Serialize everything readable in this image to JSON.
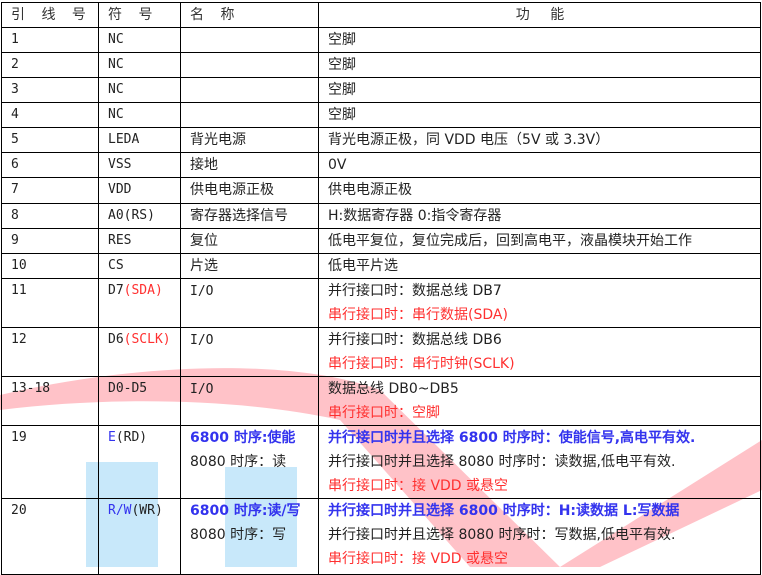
{
  "table": {
    "headers": [
      "引 线 号",
      "符 号",
      "名 称",
      "功 能"
    ],
    "rows": [
      {
        "pin": "1",
        "symbol": "NC",
        "name": "",
        "function": [
          "空脚"
        ]
      },
      {
        "pin": "2",
        "symbol": "NC",
        "name": "",
        "function": [
          "空脚"
        ]
      },
      {
        "pin": "3",
        "symbol": "NC",
        "name": "",
        "function": [
          "空脚"
        ]
      },
      {
        "pin": "4",
        "symbol": "NC",
        "name": "",
        "function": [
          "空脚"
        ]
      },
      {
        "pin": "5",
        "symbol": "LEDA",
        "name": "背光电源",
        "function": [
          "背光电源正极，同 VDD 电压（5V 或 3.3V）"
        ]
      },
      {
        "pin": "6",
        "symbol": "VSS",
        "name": "接地",
        "function": [
          "0V"
        ]
      },
      {
        "pin": "7",
        "symbol": "VDD",
        "name": "供电电源正极",
        "function": [
          "供电电源正极"
        ]
      },
      {
        "pin": "8",
        "symbol": "A0(RS)",
        "name": "寄存器选择信号",
        "function": [
          "H:数据寄存器 0:指令寄存器"
        ]
      },
      {
        "pin": "9",
        "symbol": "RES",
        "name": "复位",
        "function": [
          "低电平复位，复位完成后，回到高电平，液晶模块开始工作"
        ]
      },
      {
        "pin": "10",
        "symbol": "CS",
        "name": "片选",
        "function": [
          "低电平片选"
        ]
      },
      {
        "pin": "11",
        "symbol": "D7",
        "symbol_serial": "(SDA)",
        "name": "I/O",
        "function": [
          "并行接口时：数据总线 DB7",
          "串行接口时：串行数据(SDA)"
        ]
      },
      {
        "pin": "12",
        "symbol": "D6",
        "symbol_serial": "(SCLK)",
        "name": "I/O",
        "function": [
          "并行接口时：数据总线 DB6",
          "串行接口时：串行时钟(SCLK)"
        ]
      },
      {
        "pin": "13-18",
        "symbol": "D0-D5",
        "name": "I/O",
        "function": [
          "数据总线 DB0~DB5",
          "串行接口时：空脚"
        ]
      },
      {
        "pin": "19",
        "symbol": "E",
        "symbol_alt": "(RD)",
        "name": [
          "6800 时序:使能",
          "8080 时序：读"
        ],
        "function": [
          "并行接口时并且选择 6800 时序时：使能信号,高电平有效.",
          "并行接口时并且选择 8080 时序时：读数据,低电平有效.",
          "串行接口时：接 VDD 或悬空"
        ]
      },
      {
        "pin": "20",
        "symbol": "R/W",
        "symbol_alt": "(WR)",
        "name": [
          "6800 时序:读/写",
          "8080 时序：写"
        ],
        "function": [
          "并行接口时并且选择 6800 时序时：H:读数据   L:写数据",
          "并行接口时并且选择 8080 时序时：写数据,低电平有效.",
          "串行接口时：接 VDD 或悬空"
        ]
      }
    ]
  },
  "colors": {
    "serial_red": "#ff3030",
    "parallel_6800_blue": "#3333ee",
    "watermark_pink": "#ffb8c0",
    "watermark_blue": "#c8e8fa"
  }
}
